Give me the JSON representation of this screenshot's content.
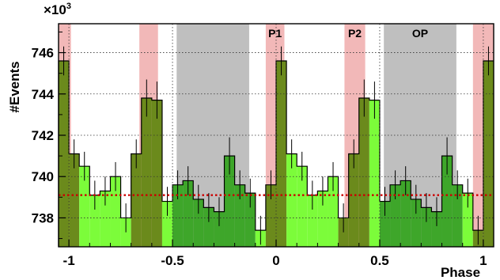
{
  "chart_data": {
    "type": "histogram",
    "xlabel": "Phase",
    "ylabel": "#Events",
    "y_multiplier": "×10",
    "y_multiplier_exp": "3",
    "xlim": [
      -1.05,
      1.05
    ],
    "ylim": [
      736.6,
      747.4
    ],
    "x_ticks": [
      -1,
      -0.5,
      0,
      0.5,
      1
    ],
    "x_tick_labels": [
      "-1",
      "-0.5",
      "0",
      "0.5",
      "1"
    ],
    "y_ticks": [
      738,
      740,
      742,
      744,
      746
    ],
    "y_tick_labels": [
      "738",
      "740",
      "742",
      "744",
      "746"
    ],
    "grid": true,
    "colors": {
      "bar_light": "#7cfc3a",
      "bar_dark_green": "#3ea62a",
      "bar_olive": "#6b8a1c",
      "shade_red": "#f2b8b8",
      "shade_gray": "#bfbfbf",
      "baseline": "#cc0000"
    },
    "bin_width": 0.05,
    "bins": [
      {
        "x0": -1.05,
        "value": 745.6,
        "err": 0.7
      },
      {
        "x0": -1.0,
        "value": 741.1,
        "err": 0.7
      },
      {
        "x0": -0.95,
        "value": 740.5,
        "err": 0.7
      },
      {
        "x0": -0.9,
        "value": 739.1,
        "err": 0.7
      },
      {
        "x0": -0.85,
        "value": 739.3,
        "err": 0.7
      },
      {
        "x0": -0.8,
        "value": 740.0,
        "err": 0.7
      },
      {
        "x0": -0.75,
        "value": 738.0,
        "err": 0.7
      },
      {
        "x0": -0.7,
        "value": 741.1,
        "err": 0.7
      },
      {
        "x0": -0.65,
        "value": 743.8,
        "err": 0.9
      },
      {
        "x0": -0.6,
        "value": 743.7,
        "err": 0.9
      },
      {
        "x0": -0.55,
        "value": 738.8,
        "err": 0.7
      },
      {
        "x0": -0.5,
        "value": 739.6,
        "err": 0.7
      },
      {
        "x0": -0.45,
        "value": 739.8,
        "err": 0.7
      },
      {
        "x0": -0.4,
        "value": 738.9,
        "err": 0.7
      },
      {
        "x0": -0.35,
        "value": 738.5,
        "err": 0.7
      },
      {
        "x0": -0.3,
        "value": 738.3,
        "err": 0.7
      },
      {
        "x0": -0.25,
        "value": 741.0,
        "err": 0.9
      },
      {
        "x0": -0.2,
        "value": 739.6,
        "err": 0.7
      },
      {
        "x0": -0.15,
        "value": 739.2,
        "err": 0.7
      },
      {
        "x0": -0.1,
        "value": 737.4,
        "err": 0.7
      },
      {
        "x0": -0.05,
        "value": 739.6,
        "err": 0.7
      },
      {
        "x0": 0.0,
        "value": 745.6,
        "err": 0.7
      },
      {
        "x0": 0.05,
        "value": 741.1,
        "err": 0.7
      },
      {
        "x0": 0.1,
        "value": 740.5,
        "err": 0.7
      },
      {
        "x0": 0.15,
        "value": 739.1,
        "err": 0.7
      },
      {
        "x0": 0.2,
        "value": 739.3,
        "err": 0.7
      },
      {
        "x0": 0.25,
        "value": 740.0,
        "err": 0.7
      },
      {
        "x0": 0.3,
        "value": 738.0,
        "err": 0.7
      },
      {
        "x0": 0.35,
        "value": 741.1,
        "err": 0.7
      },
      {
        "x0": 0.4,
        "value": 743.8,
        "err": 0.9
      },
      {
        "x0": 0.45,
        "value": 743.7,
        "err": 0.9
      },
      {
        "x0": 0.5,
        "value": 738.8,
        "err": 0.7
      },
      {
        "x0": 0.55,
        "value": 739.6,
        "err": 0.7
      },
      {
        "x0": 0.6,
        "value": 739.8,
        "err": 0.7
      },
      {
        "x0": 0.65,
        "value": 738.9,
        "err": 0.7
      },
      {
        "x0": 0.7,
        "value": 738.5,
        "err": 0.7
      },
      {
        "x0": 0.75,
        "value": 738.3,
        "err": 0.7
      },
      {
        "x0": 0.8,
        "value": 741.0,
        "err": 0.9
      },
      {
        "x0": 0.85,
        "value": 739.6,
        "err": 0.7
      },
      {
        "x0": 0.9,
        "value": 739.2,
        "err": 0.7
      },
      {
        "x0": 0.95,
        "value": 737.4,
        "err": 0.7
      },
      {
        "x0": 1.0,
        "value": 745.6,
        "err": 0.7
      }
    ],
    "baseline": 739.1,
    "phase_regions": [
      {
        "label": "",
        "from": -1.05,
        "to": -0.99,
        "kind": "peak"
      },
      {
        "label": "",
        "from": -0.66,
        "to": -0.57,
        "kind": "peak"
      },
      {
        "label": "",
        "from": -0.48,
        "to": -0.13,
        "kind": "offpulse"
      },
      {
        "label": "P1",
        "from": -0.05,
        "to": 0.04,
        "kind": "peak"
      },
      {
        "label": "P2",
        "from": 0.33,
        "to": 0.43,
        "kind": "peak"
      },
      {
        "label": "OP",
        "from": 0.52,
        "to": 0.87,
        "kind": "offpulse"
      },
      {
        "label": "",
        "from": 0.95,
        "to": 1.05,
        "kind": "peak"
      }
    ]
  }
}
